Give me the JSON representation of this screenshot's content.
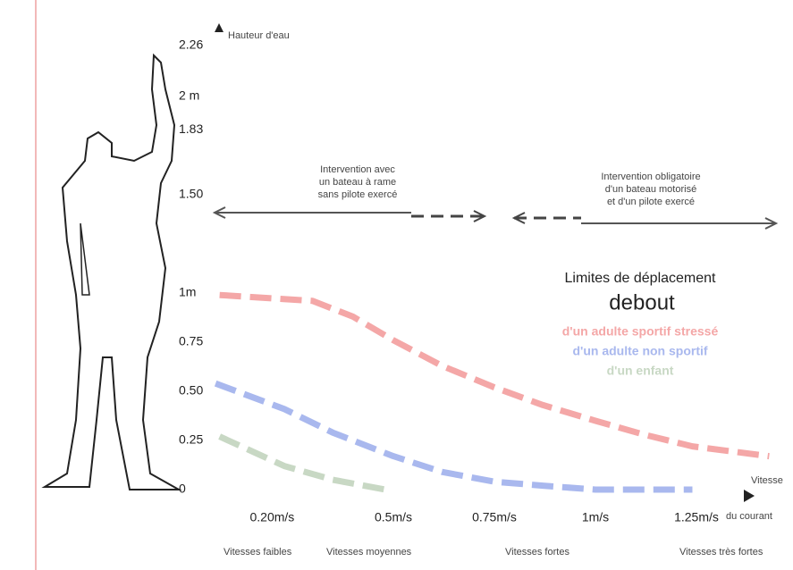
{
  "chart_data": {
    "type": "line",
    "y_label": "Hauteur d'eau",
    "x_label": [
      "Vitesse",
      "du courant"
    ],
    "xlim": [
      0,
      1.45
    ],
    "ylim": [
      0,
      2.3
    ],
    "xticks": [
      {
        "value": 0.2,
        "label": "0.20m/s"
      },
      {
        "value": 0.5,
        "label": "0.5m/s"
      },
      {
        "value": 0.75,
        "label": "0.75m/s"
      },
      {
        "value": 1,
        "label": "1m/s"
      },
      {
        "value": 1.25,
        "label": "1.25m/s"
      }
    ],
    "yticks": [
      0,
      0.25,
      {
        "value": 0.5,
        "label": "0.50"
      },
      0.75,
      {
        "value": 1,
        "label": "1m"
      },
      {
        "value": 1.5,
        "label": "1.50"
      },
      1.83,
      {
        "value": 2,
        "label": "2 m"
      },
      2.26
    ],
    "grid": false,
    "legend_title": [
      "Limites de déplacement",
      "debout"
    ],
    "series": [
      {
        "name": "d'un adulte sportif stressé",
        "color": "#f4a7a7",
        "x": [
          0.07,
          0.3,
          0.4,
          0.5,
          0.62,
          0.75,
          0.87,
          1.0,
          1.12,
          1.24,
          1.43
        ],
        "values": [
          0.99,
          0.96,
          0.88,
          0.76,
          0.63,
          0.52,
          0.43,
          0.35,
          0.28,
          0.22,
          0.17
        ]
      },
      {
        "name": "d'un adulte non sportif",
        "color": "#a9b8ee",
        "x": [
          0.06,
          0.23,
          0.35,
          0.5,
          0.62,
          0.75,
          0.87,
          1.0,
          1.24
        ],
        "values": [
          0.54,
          0.41,
          0.29,
          0.17,
          0.09,
          0.04,
          0.02,
          0,
          0
        ]
      },
      {
        "name": "d'un enfant",
        "color": "#c8d8c4",
        "x": [
          0.07,
          0.23,
          0.35,
          0.48
        ],
        "values": [
          0.27,
          0.12,
          0.05,
          0
        ]
      }
    ],
    "annotations": [
      [
        "Intervention avec",
        "un bateau à rame",
        "sans pilote exercé"
      ],
      [
        "Intervention obligatoire",
        "d'un bateau motorisé",
        "et d'un pilote exercé"
      ]
    ],
    "zones": [
      "Vitesses faibles",
      "Vitesses moyennes",
      "Vitesses fortes",
      "Vitesses très fortes"
    ]
  }
}
